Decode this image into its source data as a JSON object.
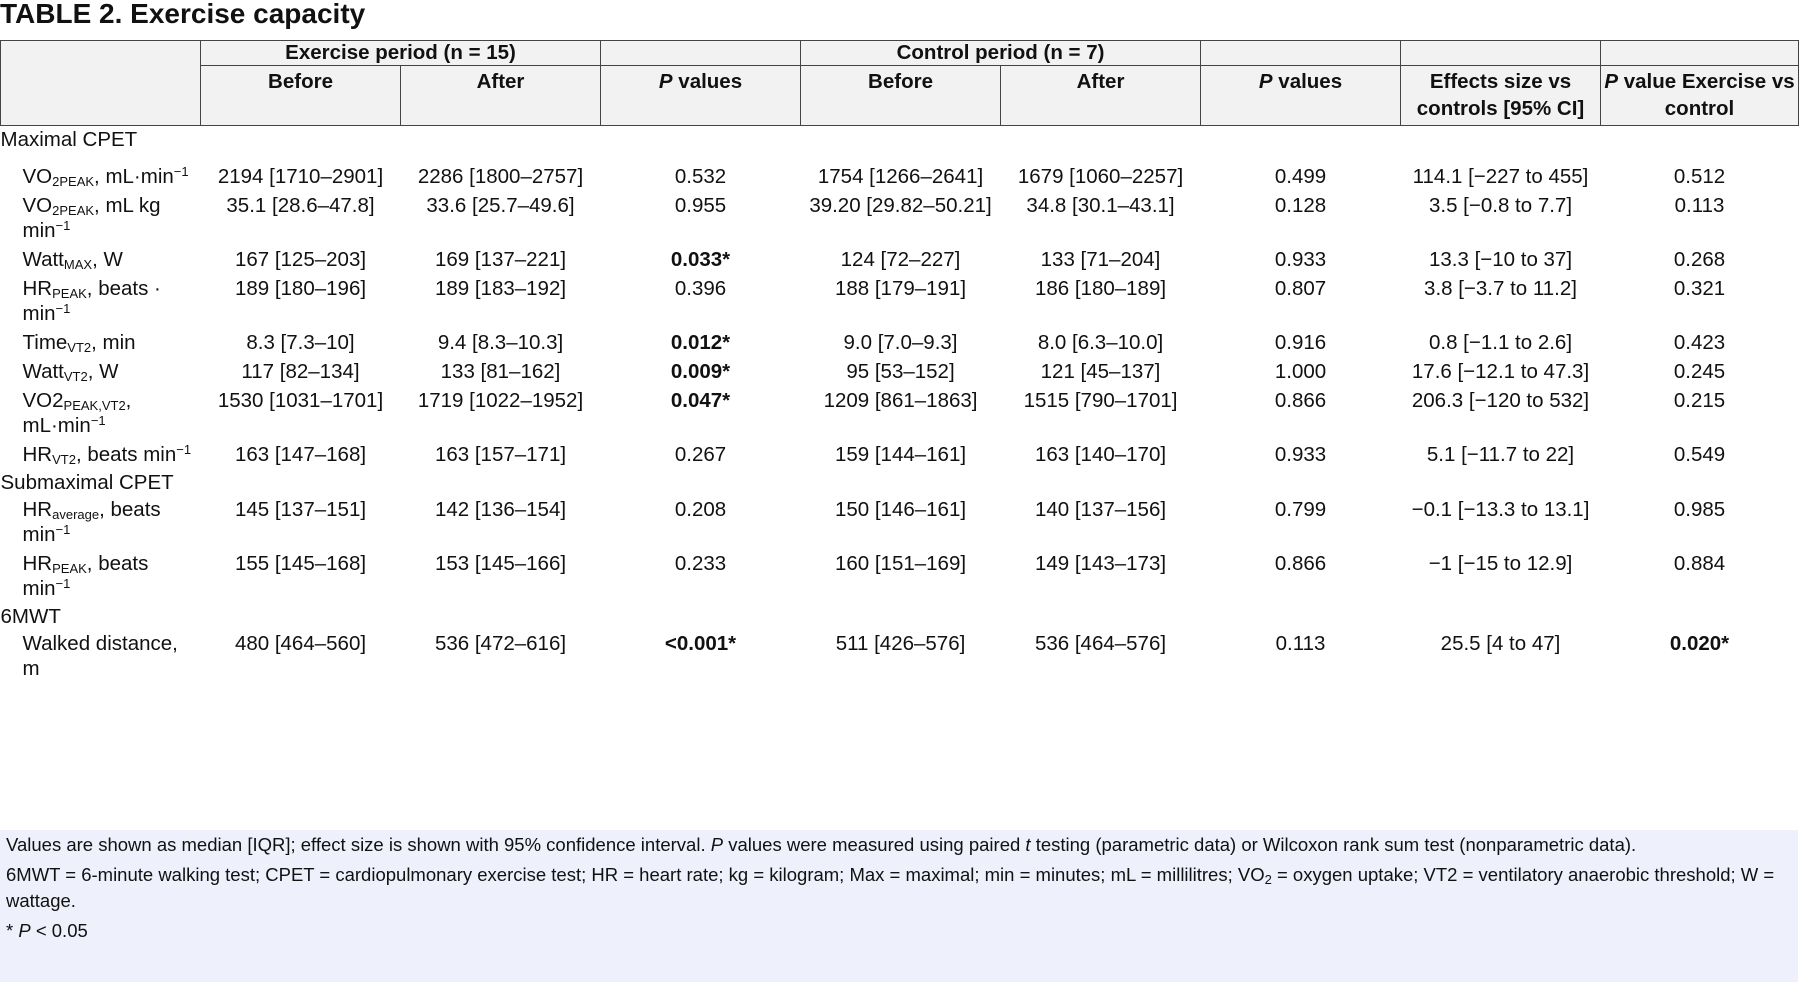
{
  "title": "TABLE 2. Exercise capacity",
  "header": {
    "group_exercise": "Exercise period (n = 15)",
    "group_control": "Control period (n = 7)",
    "before": "Before",
    "after": "After",
    "p_letter": "P",
    "values_word": " values",
    "effects_size": "Effects size vs controls [95% CI]",
    "p_value_ex_vs_ctrl_suffix": " value Exercise vs control"
  },
  "sections": {
    "maximal": "Maximal CPET",
    "submaximal": "Submaximal CPET",
    "sixmwt": "6MWT"
  },
  "rows": [
    {
      "label_main": "VO",
      "label_sub": "2PEAK",
      "label_rest": ", mL·min",
      "label_sup": "−1",
      "ex_before": "2194 [1710–2901]",
      "ex_after": "2286 [1800–2757]",
      "ex_p": "0.532",
      "ct_before": "1754 [1266–2641]",
      "ct_after": "1679 [1060–2257]",
      "ct_p": "0.499",
      "effect": "114.1 [−227 to 455]",
      "p_vs": "0.512"
    },
    {
      "label_main": "VO",
      "label_sub": "2PEAK",
      "label_rest": ", mL kg min",
      "label_sup": "−1",
      "ex_before": "35.1 [28.6–47.8]",
      "ex_after": "33.6 [25.7–49.6]",
      "ex_p": "0.955",
      "ct_before": "39.20 [29.82–50.21]",
      "ct_after": "34.8 [30.1–43.1]",
      "ct_p": "0.128",
      "effect": "3.5 [−0.8 to 7.7]",
      "p_vs": "0.113"
    },
    {
      "label_main": "Watt",
      "label_sub": "MAX",
      "label_rest": ", W",
      "label_sup": "",
      "ex_before": "167 [125–203]",
      "ex_after": "169 [137–221]",
      "ex_p": "0.033*",
      "ct_before": "124 [72–227]",
      "ct_after": "133 [71–204]",
      "ct_p": "0.933",
      "effect": "13.3 [−10 to 37]",
      "p_vs": "0.268"
    },
    {
      "label_main": "HR",
      "label_sub": "PEAK",
      "label_rest": ", beats · min",
      "label_sup": "−1",
      "ex_before": "189 [180–196]",
      "ex_after": "189 [183–192]",
      "ex_p": "0.396",
      "ct_before": "188 [179–191]",
      "ct_after": "186 [180–189]",
      "ct_p": "0.807",
      "effect": "3.8 [−3.7 to 11.2]",
      "p_vs": "0.321"
    },
    {
      "label_main": "Time",
      "label_sub": "VT2",
      "label_rest": ", min",
      "label_sup": "",
      "ex_before": "8.3 [7.3–10]",
      "ex_after": "9.4 [8.3–10.3]",
      "ex_p": "0.012*",
      "ct_before": "9.0 [7.0–9.3]",
      "ct_after": "8.0 [6.3–10.0]",
      "ct_p": "0.916",
      "effect": "0.8 [−1.1 to 2.6]",
      "p_vs": "0.423"
    },
    {
      "label_main": "Watt",
      "label_sub": "VT2",
      "label_rest": ", W",
      "label_sup": "",
      "ex_before": "117 [82–134]",
      "ex_after": "133 [81–162]",
      "ex_p": "0.009*",
      "ct_before": "95 [53–152]",
      "ct_after": "121 [45–137]",
      "ct_p": "1.000",
      "effect": "17.6 [−12.1 to 47.3]",
      "p_vs": "0.245"
    },
    {
      "label_main": "VO2",
      "label_sub": "PEAK,VT2",
      "label_rest": ", mL·min",
      "label_sup": "−1",
      "ex_before": "1530 [1031–1701]",
      "ex_after": "1719 [1022–1952]",
      "ex_p": "0.047*",
      "ct_before": "1209 [861–1863]",
      "ct_after": "1515 [790–1701]",
      "ct_p": "0.866",
      "effect": "206.3 [−120 to 532]",
      "p_vs": "0.215"
    },
    {
      "label_main": "HR",
      "label_sub": "VT2",
      "label_rest": ", beats min",
      "label_sup": "−1",
      "ex_before": "163 [147–168]",
      "ex_after": "163 [157–171]",
      "ex_p": "0.267",
      "ct_before": "159 [144–161]",
      "ct_after": "163 [140–170]",
      "ct_p": "0.933",
      "effect": "5.1 [−11.7 to 22]",
      "p_vs": "0.549"
    },
    {
      "label_main": "HR",
      "label_sub": "average",
      "label_rest": ", beats min",
      "label_sup": "−1",
      "ex_before": "145 [137–151]",
      "ex_after": "142 [136–154]",
      "ex_p": "0.208",
      "ct_before": "150 [146–161]",
      "ct_after": "140 [137–156]",
      "ct_p": "0.799",
      "effect": "−0.1 [−13.3 to 13.1]",
      "p_vs": "0.985"
    },
    {
      "label_main": "HR",
      "label_sub": "PEAK",
      "label_rest": ", beats min",
      "label_sup": "−1",
      "ex_before": "155 [145–168]",
      "ex_after": "153 [145–166]",
      "ex_p": "0.233",
      "ct_before": "160 [151–169]",
      "ct_after": "149 [143–173]",
      "ct_p": "0.866",
      "effect": "−1 [−15 to 12.9]",
      "p_vs": "0.884"
    },
    {
      "label_main": "Walked distance, m",
      "label_sub": "",
      "label_rest": "",
      "label_sup": "",
      "ex_before": "480 [464–560]",
      "ex_after": "536 [472–616]",
      "ex_p": "<0.001*",
      "ct_before": "511 [426–576]",
      "ct_after": "536 [464–576]",
      "ct_p": "0.113",
      "effect": "25.5 [4 to 47]",
      "p_vs": "0.020*"
    }
  ],
  "footnotes": {
    "f1_a": "Values are shown as median [IQR]; effect size is shown with 95% confidence interval. ",
    "f1_p": "P",
    "f1_b": " values were measured using paired ",
    "f1_t": "t",
    "f1_c": " testing (parametric data) or Wilcoxon rank sum test (nonparametric data).",
    "f2_a": "6MWT = 6-minute walking test; CPET = cardiopulmonary exercise test; HR = heart rate; kg = kilogram; Max = maximal; min = minutes; mL = millilitres; VO",
    "f2_sub": "2",
    "f2_b": " = oxygen uptake; VT2 = ventilatory anaerobic threshold; W = wattage.",
    "f3_a": "* ",
    "f3_p": "P",
    "f3_b": " < 0.05"
  }
}
